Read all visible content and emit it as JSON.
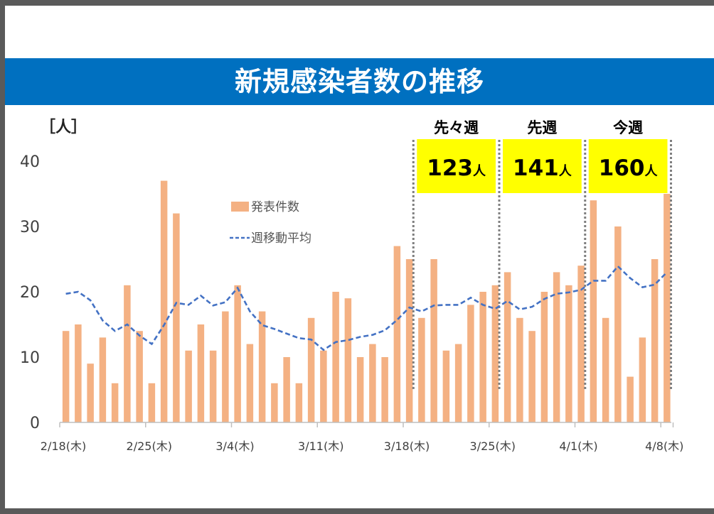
{
  "chart_data": {
    "type": "bar",
    "title": "新規感染者数の推移",
    "unit_label": "［人］",
    "ylim": [
      0,
      40
    ],
    "y_ticks": [
      "0",
      "10",
      "20",
      "30",
      "40"
    ],
    "x_tick_labels": [
      "2/18(木)",
      "2/25(木)",
      "3/4(木)",
      "3/11(木)",
      "3/18(木)",
      "3/25(木)",
      "4/1(木)",
      "4/8(木)"
    ],
    "x_tick_indices": [
      0,
      7,
      14,
      21,
      28,
      35,
      42,
      49
    ],
    "series": [
      {
        "name": "発表件数",
        "kind": "bar",
        "color": "#f4b183",
        "values": [
          14,
          15,
          9,
          13,
          6,
          21,
          14,
          6,
          37,
          32,
          11,
          15,
          11,
          17,
          21,
          12,
          17,
          6,
          10,
          6,
          16,
          11,
          20,
          19,
          10,
          12,
          10,
          27,
          25,
          16,
          25,
          11,
          12,
          18,
          20,
          21,
          23,
          16,
          14,
          20,
          23,
          21,
          24,
          34,
          16,
          30,
          7,
          13,
          25,
          35
        ]
      },
      {
        "name": "週移動平均",
        "kind": "line",
        "color": "#4472c4",
        "values": [
          19.7,
          20,
          18.7,
          15.6,
          14,
          15,
          13.3,
          12,
          14.9,
          18.3,
          18,
          19.4,
          17.9,
          18.4,
          20.6,
          17,
          14.9,
          14.3,
          13.6,
          12.9,
          12.7,
          11.1,
          12.3,
          12.6,
          13.1,
          13.4,
          14.1,
          15.7,
          17.6,
          17,
          17.9,
          18,
          18,
          19.1,
          18,
          17.4,
          18.6,
          17.3,
          17.7,
          18.9,
          19.7,
          19.9,
          20.3,
          21.7,
          21.7,
          23.9,
          22.1,
          20.7,
          21.1,
          23
        ]
      }
    ],
    "weeks": [
      {
        "label": "先々週",
        "total_num": "123",
        "total_unit": "人"
      },
      {
        "label": "先週",
        "total_num": "141",
        "total_unit": "人"
      },
      {
        "label": "今週",
        "total_num": "160",
        "total_unit": "人"
      }
    ],
    "highlight_color": "#ffff00"
  }
}
